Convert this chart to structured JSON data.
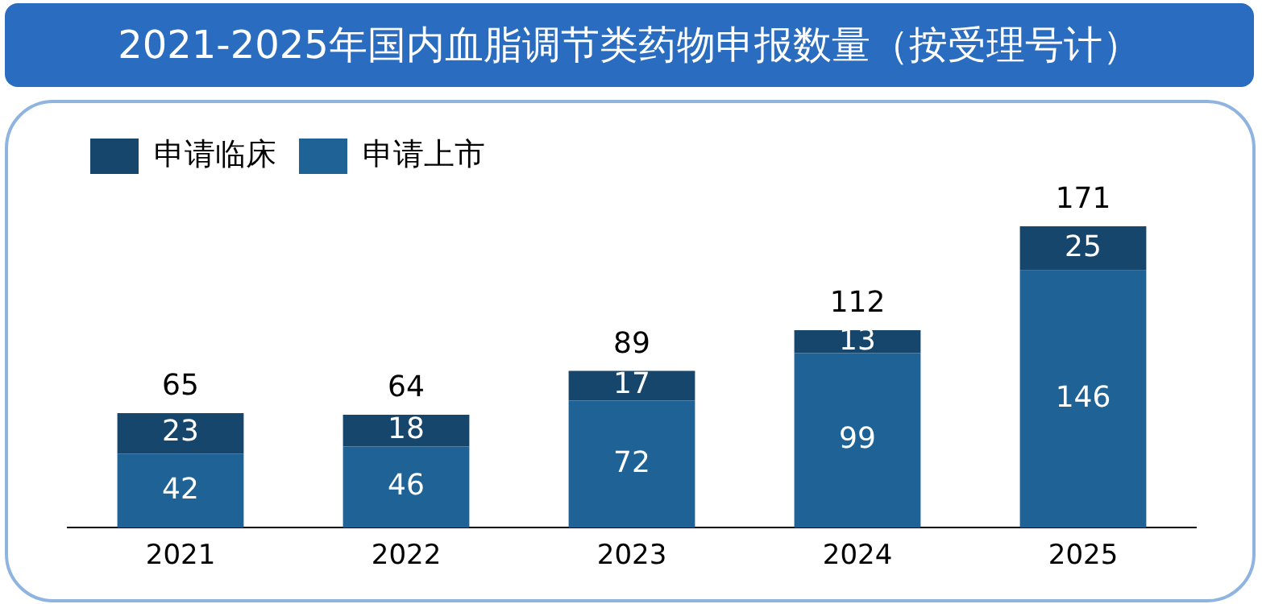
{
  "chart_data": {
    "type": "bar",
    "title": "2021-2025年国内血脂调节类药物申报数量（按受理号计）",
    "categories": [
      "2021",
      "2022",
      "2023",
      "2024",
      "2025"
    ],
    "stacked": true,
    "data_labels": true,
    "legend": "top left",
    "grid": false,
    "tick_labels": "x",
    "series": [
      {
        "name": "申请上市",
        "color": "#1e6296",
        "values": [
          42,
          46,
          72,
          99,
          146
        ]
      },
      {
        "name": "申请临床",
        "color": "#16466b",
        "values": [
          23,
          18,
          17,
          13,
          25
        ]
      }
    ],
    "totals": [
      "65",
      "64",
      "89",
      "112",
      "171"
    ]
  }
}
